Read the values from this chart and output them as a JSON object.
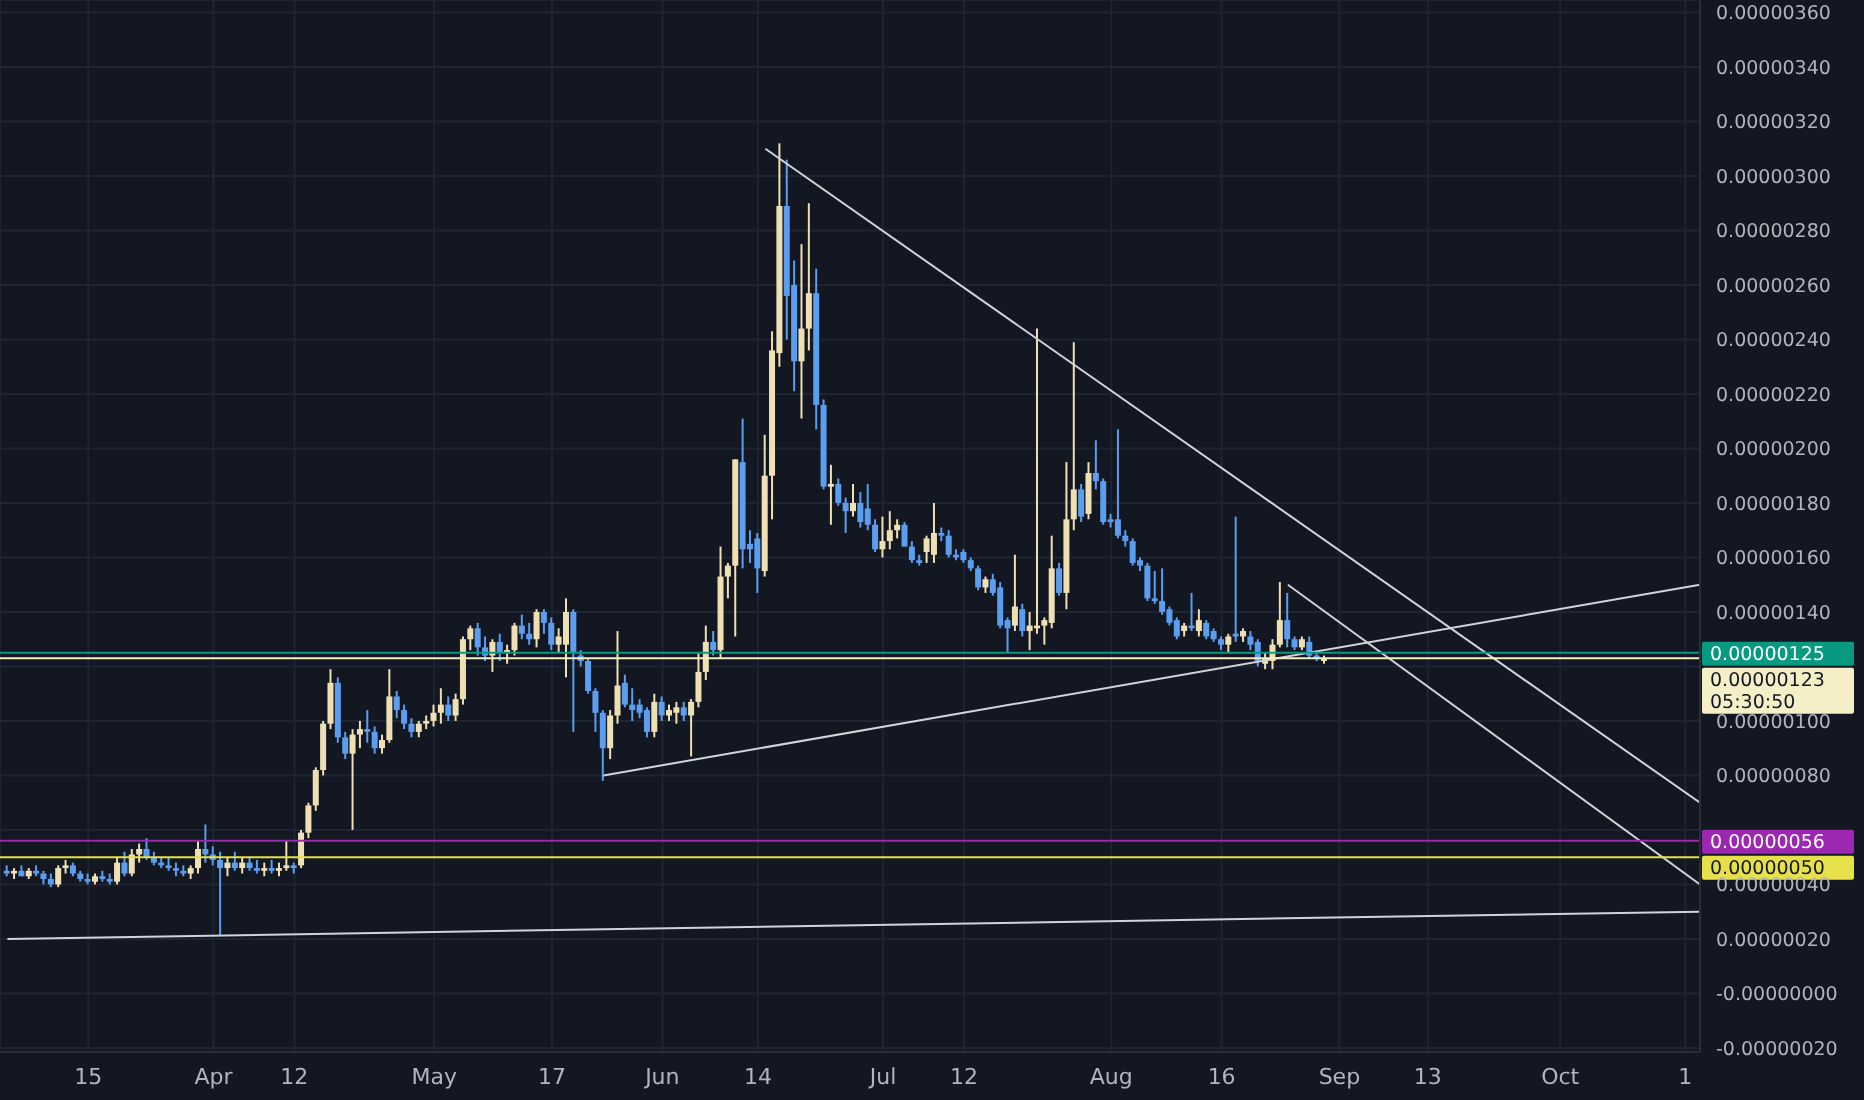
{
  "chart_data": {
    "type": "candlestick",
    "grid": true,
    "xlim": [
      "--03-03",
      "--10-20"
    ],
    "xticks": [
      {
        "value": "--03-15",
        "label": "15"
      },
      {
        "value": "--04-01",
        "label": "Apr"
      },
      {
        "value": "--04-12",
        "label": "12"
      },
      {
        "value": "--05-01",
        "label": "May"
      },
      {
        "value": "--05-17",
        "label": "17"
      },
      {
        "value": "--06-01",
        "label": "Jun"
      },
      {
        "value": "--06-14",
        "label": "14"
      },
      {
        "value": "--07-01",
        "label": "Jul"
      },
      {
        "value": "--07-12",
        "label": "12"
      },
      {
        "value": "--08-01",
        "label": "Aug"
      },
      {
        "value": "--08-16",
        "label": "16"
      },
      {
        "value": "--09-01",
        "label": "Sep"
      },
      {
        "value": "--09-13",
        "label": "13"
      },
      {
        "value": "--10-01",
        "label": "Oct"
      },
      {
        "value": "--10-18",
        "label": "1"
      }
    ],
    "ylim": [
      -2.15e-07,
      3.646e-06
    ],
    "yticks": [
      {
        "value": -2e-07,
        "label": "-0.00000020"
      },
      {
        "value": 0,
        "label": "-0.00000000"
      },
      {
        "value": 2e-07,
        "label": "0.00000020"
      },
      {
        "value": 4e-07,
        "label": "0.00000040"
      },
      {
        "value": 6e-07,
        "label": null
      },
      {
        "value": 8e-07,
        "label": "0.00000080"
      },
      {
        "value": 1e-06,
        "label": "0.00000100"
      },
      {
        "value": 1.2e-06,
        "label": null
      },
      {
        "value": 1.4e-06,
        "label": "0.00000140"
      },
      {
        "value": 1.6e-06,
        "label": "0.00000160"
      },
      {
        "value": 1.8e-06,
        "label": "0.00000180"
      },
      {
        "value": 2e-06,
        "label": "0.00000200"
      },
      {
        "value": 2.2e-06,
        "label": "0.00000220"
      },
      {
        "value": 2.4e-06,
        "label": "0.00000240"
      },
      {
        "value": 2.6e-06,
        "label": "0.00000260"
      },
      {
        "value": 2.8e-06,
        "label": "0.00000280"
      },
      {
        "value": 3e-06,
        "label": "0.00000300"
      },
      {
        "value": 3.2e-06,
        "label": "0.00000320"
      },
      {
        "value": 3.4e-06,
        "label": "0.00000340"
      },
      {
        "value": 3.6e-06,
        "label": "0.00000360"
      }
    ],
    "x": [
      "--03-04",
      "--03-05",
      "--03-06",
      "--03-07",
      "--03-08",
      "--03-09",
      "--03-10",
      "--03-11",
      "--03-12",
      "--03-13",
      "--03-14",
      "--03-15",
      "--03-16",
      "--03-17",
      "--03-18",
      "--03-19",
      "--03-20",
      "--03-21",
      "--03-22",
      "--03-23",
      "--03-24",
      "--03-25",
      "--03-26",
      "--03-27",
      "--03-28",
      "--03-29",
      "--03-30",
      "--03-31",
      "--04-01",
      "--04-02",
      "--04-03",
      "--04-04",
      "--04-05",
      "--04-06",
      "--04-07",
      "--04-08",
      "--04-09",
      "--04-10",
      "--04-11",
      "--04-12",
      "--04-13",
      "--04-14",
      "--04-15",
      "--04-16",
      "--04-17",
      "--04-18",
      "--04-19",
      "--04-20",
      "--04-21",
      "--04-22",
      "--04-23",
      "--04-24",
      "--04-25",
      "--04-26",
      "--04-27",
      "--04-28",
      "--04-29",
      "--04-30",
      "--05-01",
      "--05-02",
      "--05-03",
      "--05-04",
      "--05-05",
      "--05-06",
      "--05-07",
      "--05-08",
      "--05-09",
      "--05-10",
      "--05-11",
      "--05-12",
      "--05-13",
      "--05-14",
      "--05-15",
      "--05-16",
      "--05-17",
      "--05-18",
      "--05-19",
      "--05-20",
      "--05-21",
      "--05-22",
      "--05-23",
      "--05-24",
      "--05-25",
      "--05-26",
      "--05-27",
      "--05-28",
      "--05-29",
      "--05-30",
      "--05-31",
      "--06-01",
      "--06-02",
      "--06-03",
      "--06-04",
      "--06-05",
      "--06-06",
      "--06-07",
      "--06-08",
      "--06-09",
      "--06-10",
      "--06-11",
      "--06-12",
      "--06-13",
      "--06-14",
      "--06-15",
      "--06-16",
      "--06-17",
      "--06-18",
      "--06-19",
      "--06-20",
      "--06-21",
      "--06-22",
      "--06-23",
      "--06-24",
      "--06-25",
      "--06-26",
      "--06-27",
      "--06-28",
      "--06-29",
      "--06-30",
      "--07-01",
      "--07-02",
      "--07-03",
      "--07-04",
      "--07-05",
      "--07-06",
      "--07-07",
      "--07-08",
      "--07-09",
      "--07-10",
      "--07-11",
      "--07-12",
      "--07-13",
      "--07-14",
      "--07-15",
      "--07-16",
      "--07-17",
      "--07-18",
      "--07-19",
      "--07-20",
      "--07-21",
      "--07-22",
      "--07-23",
      "--07-24",
      "--07-25",
      "--07-26",
      "--07-27",
      "--07-28",
      "--07-29",
      "--07-30",
      "--07-31",
      "--08-01",
      "--08-02",
      "--08-03",
      "--08-04",
      "--08-05",
      "--08-06",
      "--08-07",
      "--08-08",
      "--08-09",
      "--08-10",
      "--08-11",
      "--08-12",
      "--08-13",
      "--08-14",
      "--08-15",
      "--08-16",
      "--08-17",
      "--08-18",
      "--08-19",
      "--08-20",
      "--08-21",
      "--08-22",
      "--08-23",
      "--08-24",
      "--08-25",
      "--08-26",
      "--08-27",
      "--08-28",
      "--08-29",
      "--08-30"
    ],
    "ohlc": [
      [
        4.5e-07,
        4.7e-07,
        4.3e-07,
        4.4e-07
      ],
      [
        4.4e-07,
        4.6e-07,
        4.2e-07,
        4.5e-07
      ],
      [
        4.5e-07,
        4.7e-07,
        4.3e-07,
        4.3e-07
      ],
      [
        4.3e-07,
        4.6e-07,
        4.2e-07,
        4.5e-07
      ],
      [
        4.5e-07,
        4.7e-07,
        4.3e-07,
        4.4e-07
      ],
      [
        4.4e-07,
        4.5e-07,
        4e-07,
        4.2e-07
      ],
      [
        4.2e-07,
        4.4e-07,
        3.9e-07,
        4e-07
      ],
      [
        4e-07,
        4.7e-07,
        3.9e-07,
        4.6e-07
      ],
      [
        4.6e-07,
        4.9e-07,
        4.4e-07,
        4.7e-07
      ],
      [
        4.7e-07,
        4.8e-07,
        4.3e-07,
        4.4e-07
      ],
      [
        4.4e-07,
        4.5e-07,
        4.1e-07,
        4.2e-07
      ],
      [
        4.2e-07,
        4.4e-07,
        4e-07,
        4.1e-07
      ],
      [
        4.1e-07,
        4.4e-07,
        4e-07,
        4.3e-07
      ],
      [
        4.3e-07,
        4.5e-07,
        4.1e-07,
        4.2e-07
      ],
      [
        4.2e-07,
        4.4e-07,
        4e-07,
        4.1e-07
      ],
      [
        4.1e-07,
        5e-07,
        4e-07,
        4.8e-07
      ],
      [
        4.8e-07,
        5.2e-07,
        4.3e-07,
        4.4e-07
      ],
      [
        4.4e-07,
        5.3e-07,
        4.3e-07,
        5.1e-07
      ],
      [
        5.1e-07,
        5.5e-07,
        4.8e-07,
        5.3e-07
      ],
      [
        5.3e-07,
        5.7e-07,
        4.9e-07,
        5e-07
      ],
      [
        5e-07,
        5.2e-07,
        4.7e-07,
        4.8e-07
      ],
      [
        4.8e-07,
        5e-07,
        4.6e-07,
        4.7e-07
      ],
      [
        4.7e-07,
        5e-07,
        4.5e-07,
        4.6e-07
      ],
      [
        4.6e-07,
        4.8e-07,
        4.3e-07,
        4.5e-07
      ],
      [
        4.5e-07,
        4.7e-07,
        4.3e-07,
        4.4e-07
      ],
      [
        4.4e-07,
        4.7e-07,
        4.2e-07,
        4.6e-07
      ],
      [
        4.6e-07,
        5.6e-07,
        4.4e-07,
        5.3e-07
      ],
      [
        5.3e-07,
        6.2e-07,
        4.8e-07,
        5.1e-07
      ],
      [
        5.1e-07,
        5.4e-07,
        4.7e-07,
        4.9e-07
      ],
      [
        4.9e-07,
        5.2e-07,
        2.1e-07,
        4.6e-07
      ],
      [
        4.6e-07,
        5e-07,
        4.3e-07,
        4.8e-07
      ],
      [
        4.8e-07,
        5.2e-07,
        4.5e-07,
        4.6e-07
      ],
      [
        4.6e-07,
        5e-07,
        4.4e-07,
        4.8e-07
      ],
      [
        4.8e-07,
        5e-07,
        4.5e-07,
        4.6e-07
      ],
      [
        4.6e-07,
        4.9e-07,
        4.4e-07,
        4.5e-07
      ],
      [
        4.5e-07,
        4.8e-07,
        4.3e-07,
        4.6e-07
      ],
      [
        4.6e-07,
        4.9e-07,
        4.4e-07,
        4.5e-07
      ],
      [
        4.5e-07,
        4.8e-07,
        4.3e-07,
        4.6e-07
      ],
      [
        4.6e-07,
        5.6e-07,
        4.5e-07,
        4.7e-07
      ],
      [
        4.7e-07,
        4.8e-07,
        4.4e-07,
        4.6e-07
      ],
      [
        4.7e-07,
        6e-07,
        4.6e-07,
        5.9e-07
      ],
      [
        5.9e-07,
        7e-07,
        5.7e-07,
        6.9e-07
      ],
      [
        6.9e-07,
        8.3e-07,
        6.7e-07,
        8.2e-07
      ],
      [
        8.2e-07,
        1e-06,
        8e-07,
        9.9e-07
      ],
      [
        9.9e-07,
        1.19e-06,
        9.7e-07,
        1.14e-06
      ],
      [
        1.14e-06,
        1.16e-06,
        9.2e-07,
        9.4e-07
      ],
      [
        9.4e-07,
        9.6e-07,
        8.6e-07,
        8.8e-07
      ],
      [
        8.8e-07,
        9.7e-07,
        6e-07,
        9.5e-07
      ],
      [
        9.5e-07,
        1e-06,
        9e-07,
        9.7e-07
      ],
      [
        9.7e-07,
        1.04e-06,
        9.2e-07,
        9.6e-07
      ],
      [
        9.6e-07,
        9.8e-07,
        8.8e-07,
        9e-07
      ],
      [
        9e-07,
        9.5e-07,
        8.8e-07,
        9.3e-07
      ],
      [
        9.3e-07,
        1.19e-06,
        9.2e-07,
        1.09e-06
      ],
      [
        1.09e-06,
        1.11e-06,
        1.01e-06,
        1.04e-06
      ],
      [
        1.04e-06,
        1.06e-06,
        9.7e-07,
        9.9e-07
      ],
      [
        9.9e-07,
        1.01e-06,
        9.4e-07,
        9.6e-07
      ],
      [
        9.6e-07,
        1e-06,
        9.4e-07,
        9.9e-07
      ],
      [
        9.9e-07,
        1.02e-06,
        9.7e-07,
        1e-06
      ],
      [
        1e-06,
        1.06e-06,
        9.8e-07,
        1.03e-06
      ],
      [
        1.03e-06,
        1.12e-06,
        9.9e-07,
        1.06e-06
      ],
      [
        1.06e-06,
        1.09e-06,
        1e-06,
        1.02e-06
      ],
      [
        1.02e-06,
        1.1e-06,
        1e-06,
        1.08e-06
      ],
      [
        1.08e-06,
        1.31e-06,
        1.06e-06,
        1.3e-06
      ],
      [
        1.3e-06,
        1.35e-06,
        1.26e-06,
        1.34e-06
      ],
      [
        1.34e-06,
        1.36e-06,
        1.24e-06,
        1.27e-06
      ],
      [
        1.27e-06,
        1.31e-06,
        1.22e-06,
        1.24e-06
      ],
      [
        1.24e-06,
        1.3e-06,
        1.18e-06,
        1.29e-06
      ],
      [
        1.29e-06,
        1.32e-06,
        1.22e-06,
        1.25e-06
      ],
      [
        1.25e-06,
        1.28e-06,
        1.21e-06,
        1.26e-06
      ],
      [
        1.26e-06,
        1.36e-06,
        1.24e-06,
        1.35e-06
      ],
      [
        1.35e-06,
        1.39e-06,
        1.3e-06,
        1.32e-06
      ],
      [
        1.32e-06,
        1.36e-06,
        1.28e-06,
        1.3e-06
      ],
      [
        1.3e-06,
        1.41e-06,
        1.27e-06,
        1.4e-06
      ],
      [
        1.4e-06,
        1.41e-06,
        1.32e-06,
        1.36e-06
      ],
      [
        1.36e-06,
        1.38e-06,
        1.26e-06,
        1.28e-06
      ],
      [
        1.28e-06,
        1.34e-06,
        1.25e-06,
        1.31e-06
      ],
      [
        1.28e-06,
        1.45e-06,
        1.16e-06,
        1.4e-06
      ],
      [
        1.4e-06,
        1.41e-06,
        9.6e-07,
        1.25e-06
      ],
      [
        1.24e-06,
        1.26e-06,
        1.2e-06,
        1.22e-06
      ],
      [
        1.22e-06,
        1.23e-06,
        1.1e-06,
        1.11e-06
      ],
      [
        1.11e-06,
        1.12e-06,
        9.6e-07,
        1.03e-06
      ],
      [
        1.03e-06,
        1.04e-06,
        7.8e-07,
        9e-07
      ],
      [
        9e-07,
        1.04e-06,
        8.6e-07,
        1.02e-06
      ],
      [
        1.02e-06,
        1.33e-06,
        9.9e-07,
        1.13e-06
      ],
      [
        1.14e-06,
        1.17e-06,
        1.05e-06,
        1.06e-06
      ],
      [
        1.06e-06,
        1.12e-06,
        1e-06,
        1.04e-06
      ],
      [
        1.06e-06,
        1.08e-06,
        1.01e-06,
        1.03e-06
      ],
      [
        1.04e-06,
        1.05e-06,
        9.4e-07,
        9.6e-07
      ],
      [
        9.6e-07,
        1.1e-06,
        9.4e-07,
        1.07e-06
      ],
      [
        1.07e-06,
        1.09e-06,
        1e-06,
        1.02e-06
      ],
      [
        1.02e-06,
        1.06e-06,
        1e-06,
        1.04e-06
      ],
      [
        1.03e-06,
        1.07e-06,
        9.9e-07,
        1.05e-06
      ],
      [
        1.05e-06,
        1.07e-06,
        1e-06,
        1.02e-06
      ],
      [
        1.02e-06,
        1.08e-06,
        8.7e-07,
        1.07e-06
      ],
      [
        1.07e-06,
        1.25e-06,
        1.05e-06,
        1.18e-06
      ],
      [
        1.18e-06,
        1.35e-06,
        1.15e-06,
        1.29e-06
      ],
      [
        1.29e-06,
        1.33e-06,
        1.24e-06,
        1.26e-06
      ],
      [
        1.26e-06,
        1.64e-06,
        1.23e-06,
        1.53e-06
      ],
      [
        1.53e-06,
        1.58e-06,
        1.45e-06,
        1.57e-06
      ],
      [
        1.57e-06,
        1.96e-06,
        1.31e-06,
        1.96e-06
      ],
      [
        1.95e-06,
        2.11e-06,
        1.56e-06,
        1.63e-06
      ],
      [
        1.65e-06,
        1.7e-06,
        1.58e-06,
        1.63e-06
      ],
      [
        1.67e-06,
        1.69e-06,
        1.47e-06,
        1.56e-06
      ],
      [
        1.55e-06,
        2.05e-06,
        1.53e-06,
        1.9e-06
      ],
      [
        1.9e-06,
        2.43e-06,
        1.74e-06,
        2.36e-06
      ],
      [
        2.35e-06,
        3.12e-06,
        2.3e-06,
        2.89e-06
      ],
      [
        2.89e-06,
        3.06e-06,
        2.4e-06,
        2.56e-06
      ],
      [
        2.6e-06,
        2.69e-06,
        2.21e-06,
        2.32e-06
      ],
      [
        2.32e-06,
        2.75e-06,
        2.11e-06,
        2.44e-06
      ],
      [
        2.44e-06,
        2.9e-06,
        2.36e-06,
        2.57e-06
      ],
      [
        2.57e-06,
        2.66e-06,
        2.07e-06,
        2.16e-06
      ],
      [
        2.16e-06,
        2.18e-06,
        1.85e-06,
        1.86e-06
      ],
      [
        1.86e-06,
        1.94e-06,
        1.72e-06,
        1.87e-06
      ],
      [
        1.87e-06,
        1.89e-06,
        1.79e-06,
        1.8e-06
      ],
      [
        1.8e-06,
        1.82e-06,
        1.69e-06,
        1.77e-06
      ],
      [
        1.77e-06,
        1.87e-06,
        1.75e-06,
        1.8e-06
      ],
      [
        1.8e-06,
        1.84e-06,
        1.71e-06,
        1.73e-06
      ],
      [
        1.78e-06,
        1.87e-06,
        1.7e-06,
        1.72e-06
      ],
      [
        1.72e-06,
        1.74e-06,
        1.62e-06,
        1.63e-06
      ],
      [
        1.63e-06,
        1.75e-06,
        1.6e-06,
        1.66e-06
      ],
      [
        1.66e-06,
        1.77e-06,
        1.63e-06,
        1.7e-06
      ],
      [
        1.7e-06,
        1.74e-06,
        1.67e-06,
        1.72e-06
      ],
      [
        1.72e-06,
        1.73e-06,
        1.64e-06,
        1.64e-06
      ],
      [
        1.64e-06,
        1.66e-06,
        1.58e-06,
        1.59e-06
      ],
      [
        1.59e-06,
        1.61e-06,
        1.57e-06,
        1.58e-06
      ],
      [
        1.62e-06,
        1.68e-06,
        1.58e-06,
        1.67e-06
      ],
      [
        1.61e-06,
        1.8e-06,
        1.58e-06,
        1.69e-06
      ],
      [
        1.69e-06,
        1.71e-06,
        1.66e-06,
        1.68e-06
      ],
      [
        1.68e-06,
        1.7e-06,
        1.6e-06,
        1.61e-06
      ],
      [
        1.61e-06,
        1.63e-06,
        1.59e-06,
        1.6e-06
      ],
      [
        1.62e-06,
        1.63e-06,
        1.58e-06,
        1.59e-06
      ],
      [
        1.59e-06,
        1.6e-06,
        1.55e-06,
        1.56e-06
      ],
      [
        1.56e-06,
        1.57e-06,
        1.48e-06,
        1.49e-06
      ],
      [
        1.49e-06,
        1.53e-06,
        1.47e-06,
        1.52e-06
      ],
      [
        1.52e-06,
        1.54e-06,
        1.46e-06,
        1.47e-06
      ],
      [
        1.49e-06,
        1.51e-06,
        1.34e-06,
        1.35e-06
      ],
      [
        1.37e-06,
        1.38e-06,
        1.25e-06,
        1.34e-06
      ],
      [
        1.35e-06,
        1.61e-06,
        1.33e-06,
        1.42e-06
      ],
      [
        1.41e-06,
        1.43e-06,
        1.31e-06,
        1.33e-06
      ],
      [
        1.33e-06,
        1.4e-06,
        1.26e-06,
        1.35e-06
      ],
      [
        1.34e-06,
        2.44e-06,
        1.32e-06,
        1.35e-06
      ],
      [
        1.35e-06,
        1.38e-06,
        1.28e-06,
        1.37e-06
      ],
      [
        1.36e-06,
        1.68e-06,
        1.34e-06,
        1.56e-06
      ],
      [
        1.56e-06,
        1.58e-06,
        1.46e-06,
        1.47e-06
      ],
      [
        1.47e-06,
        1.95e-06,
        1.41e-06,
        1.74e-06
      ],
      [
        1.74e-06,
        2.39e-06,
        1.7e-06,
        1.85e-06
      ],
      [
        1.85e-06,
        1.87e-06,
        1.73e-06,
        1.75e-06
      ],
      [
        1.76e-06,
        1.95e-06,
        1.74e-06,
        1.91e-06
      ],
      [
        1.91e-06,
        2.03e-06,
        1.85e-06,
        1.88e-06
      ],
      [
        1.88e-06,
        1.89e-06,
        1.72e-06,
        1.73e-06
      ],
      [
        1.74e-06,
        1.76e-06,
        1.71e-06,
        1.73e-06
      ],
      [
        1.74e-06,
        2.07e-06,
        1.67e-06,
        1.68e-06
      ],
      [
        1.68e-06,
        1.7e-06,
        1.64e-06,
        1.66e-06
      ],
      [
        1.66e-06,
        1.67e-06,
        1.57e-06,
        1.58e-06
      ],
      [
        1.59e-06,
        1.6e-06,
        1.55e-06,
        1.57e-06
      ],
      [
        1.57e-06,
        1.58e-06,
        1.44e-06,
        1.45e-06
      ],
      [
        1.45e-06,
        1.55e-06,
        1.43e-06,
        1.44e-06
      ],
      [
        1.44e-06,
        1.56e-06,
        1.39e-06,
        1.4e-06
      ],
      [
        1.41e-06,
        1.42e-06,
        1.35e-06,
        1.36e-06
      ],
      [
        1.37e-06,
        1.38e-06,
        1.3e-06,
        1.31e-06
      ],
      [
        1.33e-06,
        1.36e-06,
        1.31e-06,
        1.35e-06
      ],
      [
        1.35e-06,
        1.47e-06,
        1.33e-06,
        1.34e-06
      ],
      [
        1.33e-06,
        1.41e-06,
        1.31e-06,
        1.37e-06
      ],
      [
        1.36e-06,
        1.37e-06,
        1.3e-06,
        1.31e-06
      ],
      [
        1.33e-06,
        1.34e-06,
        1.29e-06,
        1.3e-06
      ],
      [
        1.3e-06,
        1.31e-06,
        1.26e-06,
        1.28e-06
      ],
      [
        1.28e-06,
        1.32e-06,
        1.25e-06,
        1.31e-06
      ],
      [
        1.32e-06,
        1.75e-06,
        1.29e-06,
        1.31e-06
      ],
      [
        1.31e-06,
        1.34e-06,
        1.29e-06,
        1.33e-06
      ],
      [
        1.31e-06,
        1.33e-06,
        1.26e-06,
        1.28e-06
      ],
      [
        1.29e-06,
        1.3e-06,
        1.2e-06,
        1.22e-06
      ],
      [
        1.21e-06,
        1.25e-06,
        1.19e-06,
        1.23e-06
      ],
      [
        1.22e-06,
        1.3e-06,
        1.19e-06,
        1.28e-06
      ],
      [
        1.28e-06,
        1.51e-06,
        1.27e-06,
        1.37e-06
      ],
      [
        1.37e-06,
        1.47e-06,
        1.27e-06,
        1.3e-06
      ],
      [
        1.3e-06,
        1.31e-06,
        1.26e-06,
        1.27e-06
      ],
      [
        1.27e-06,
        1.31e-06,
        1.26e-06,
        1.3e-06
      ],
      [
        1.29e-06,
        1.31e-06,
        1.23e-06,
        1.24e-06
      ],
      [
        1.24e-06,
        1.25e-06,
        1.22e-06,
        1.23e-06
      ],
      [
        1.22e-06,
        1.24e-06,
        1.21e-06,
        1.23e-06
      ]
    ],
    "colors": [
      "#5b9ef0",
      "#efe0b4",
      "#5b9ef0",
      "#efe0b4",
      "#5b9ef0",
      "#5b9ef0",
      "#5b9ef0",
      "#efe0b4",
      "#efe0b4",
      "#5b9ef0",
      "#5b9ef0",
      "#5b9ef0",
      "#efe0b4",
      "#5b9ef0",
      "#5b9ef0",
      "#efe0b4",
      "#5b9ef0",
      "#efe0b4",
      "#efe0b4",
      "#5b9ef0",
      "#5b9ef0",
      "#5b9ef0",
      "#5b9ef0",
      "#5b9ef0",
      "#5b9ef0",
      "#efe0b4",
      "#efe0b4",
      "#5b9ef0",
      "#5b9ef0",
      "#5b9ef0",
      "#efe0b4",
      "#5b9ef0",
      "#efe0b4",
      "#5b9ef0",
      "#5b9ef0",
      "#efe0b4",
      "#5b9ef0",
      "#efe0b4",
      "#efe0b4",
      "#5b9ef0",
      "#efe0b4",
      "#efe0b4",
      "#efe0b4",
      "#efe0b4",
      "#efe0b4",
      "#5b9ef0",
      "#5b9ef0",
      "#efe0b4",
      "#efe0b4",
      "#5b9ef0",
      "#5b9ef0",
      "#efe0b4",
      "#efe0b4",
      "#5b9ef0",
      "#5b9ef0",
      "#5b9ef0",
      "#efe0b4",
      "#efe0b4",
      "#efe0b4",
      "#efe0b4",
      "#5b9ef0",
      "#efe0b4",
      "#efe0b4",
      "#efe0b4",
      "#5b9ef0",
      "#5b9ef0",
      "#efe0b4",
      "#5b9ef0",
      "#efe0b4",
      "#efe0b4",
      "#5b9ef0",
      "#5b9ef0",
      "#efe0b4",
      "#5b9ef0",
      "#5b9ef0",
      "#efe0b4",
      "#efe0b4",
      "#5b9ef0",
      "#5b9ef0",
      "#5b9ef0",
      "#5b9ef0",
      "#5b9ef0",
      "#efe0b4",
      "#efe0b4",
      "#5b9ef0",
      "#5b9ef0",
      "#5b9ef0",
      "#5b9ef0",
      "#efe0b4",
      "#5b9ef0",
      "#efe0b4",
      "#efe0b4",
      "#5b9ef0",
      "#efe0b4",
      "#efe0b4",
      "#efe0b4",
      "#5b9ef0",
      "#efe0b4",
      "#efe0b4",
      "#efe0b4",
      "#5b9ef0",
      "#5b9ef0",
      "#5b9ef0",
      "#efe0b4",
      "#efe0b4",
      "#efe0b4",
      "#5b9ef0",
      "#5b9ef0",
      "#efe0b4",
      "#efe0b4",
      "#5b9ef0",
      "#5b9ef0",
      "#efe0b4",
      "#5b9ef0",
      "#5b9ef0",
      "#efe0b4",
      "#5b9ef0",
      "#5b9ef0",
      "#5b9ef0",
      "#efe0b4",
      "#efe0b4",
      "#efe0b4",
      "#5b9ef0",
      "#5b9ef0",
      "#5b9ef0",
      "#efe0b4",
      "#efe0b4",
      "#5b9ef0",
      "#5b9ef0",
      "#5b9ef0",
      "#5b9ef0",
      "#5b9ef0",
      "#5b9ef0",
      "#efe0b4",
      "#5b9ef0",
      "#5b9ef0",
      "#5b9ef0",
      "#efe0b4",
      "#5b9ef0",
      "#efe0b4",
      "#efe0b4",
      "#efe0b4",
      "#efe0b4",
      "#5b9ef0",
      "#efe0b4",
      "#efe0b4",
      "#5b9ef0",
      "#efe0b4",
      "#5b9ef0",
      "#5b9ef0",
      "#5b9ef0",
      "#5b9ef0",
      "#5b9ef0",
      "#5b9ef0",
      "#5b9ef0",
      "#5b9ef0",
      "#5b9ef0",
      "#5b9ef0",
      "#5b9ef0",
      "#5b9ef0",
      "#efe0b4",
      "#5b9ef0",
      "#efe0b4",
      "#5b9ef0",
      "#5b9ef0",
      "#5b9ef0",
      "#efe0b4",
      "#5b9ef0",
      "#efe0b4",
      "#5b9ef0",
      "#5b9ef0",
      "#efe0b4",
      "#efe0b4",
      "#efe0b4",
      "#5b9ef0",
      "#5b9ef0",
      "#efe0b4",
      "#5b9ef0",
      "#5b9ef0",
      "#efe0b4"
    ],
    "series": [
      {
        "type": "line",
        "color": "#d1d4dc",
        "x": [
          "--06-15",
          "--10-20"
        ],
        "values": [
          3.1e-06,
          7e-07
        ]
      },
      {
        "type": "line",
        "color": "#d1d4dc",
        "x": [
          "--08-25",
          "--10-20"
        ],
        "values": [
          1.5e-06,
          4e-07
        ]
      },
      {
        "type": "line",
        "color": "#d1d4dc",
        "x": [
          "--05-24",
          "--10-20"
        ],
        "values": [
          8e-07,
          1.5e-06
        ]
      },
      {
        "type": "line",
        "color": "#d1d4dc",
        "x": [
          "--03-04",
          "--10-20"
        ],
        "values": [
          2e-07,
          3e-07
        ]
      }
    ],
    "ref_lines": [
      {
        "axis": "y",
        "value": 1.25e-06,
        "label": "0.00000125",
        "color": "#089981"
      },
      {
        "axis": "y",
        "value": 1.23e-06,
        "label": "0.00000123\n05:30:50",
        "color": "#f5efc8"
      },
      {
        "axis": "y",
        "value": 5.6e-07,
        "label": "0.00000056",
        "color": "#9c27b0"
      },
      {
        "axis": "y",
        "value": 5e-07,
        "label": "0.00000050",
        "color": "#e6e04a"
      }
    ]
  }
}
